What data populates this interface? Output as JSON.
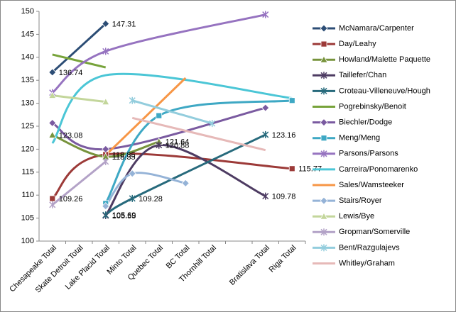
{
  "chart_data": {
    "type": "line",
    "categories": [
      "Chesapeake Total",
      "Skate Detroit Total",
      "Lake Placid Total",
      "Minto Total",
      "Quebec Total",
      "BC Total",
      "Thornhill Total",
      null,
      "Bratislava Total",
      "Riga Total"
    ],
    "ylim": [
      100,
      150
    ],
    "yticks": [
      100,
      105,
      110,
      115,
      120,
      125,
      130,
      135,
      140,
      145,
      150
    ],
    "legend": "right",
    "smooth": true,
    "series": [
      {
        "name": "McNamara/Carpenter",
        "color": "#2c4d75",
        "marker": "diamond",
        "data_labels": true,
        "values": [
          136.74,
          null,
          147.31,
          null,
          null,
          null,
          null,
          null,
          null,
          null
        ]
      },
      {
        "name": "Day/Leahy",
        "color": "#9c3a38",
        "marker": "square",
        "data_labels": true,
        "values": [
          109.26,
          null,
          118.85,
          null,
          null,
          null,
          null,
          null,
          null,
          115.77
        ]
      },
      {
        "name": "Howland/Malette Paquette",
        "color": "#77933c",
        "marker": "triangle",
        "data_labels": true,
        "values": [
          123.08,
          null,
          118.35,
          null,
          121.64,
          null,
          null,
          null,
          null,
          null
        ]
      },
      {
        "name": "Taillefer/Chan",
        "color": "#4d3b62",
        "marker": "x",
        "data_labels": true,
        "values": [
          null,
          null,
          105.55,
          null,
          120.88,
          null,
          null,
          null,
          109.78,
          null
        ]
      },
      {
        "name": "Croteau-Villeneuve/Hough",
        "color": "#276a7c",
        "marker": "x",
        "data_labels": true,
        "values": [
          null,
          null,
          105.69,
          109.28,
          null,
          null,
          null,
          null,
          123.16,
          null
        ]
      },
      {
        "name": "Pogrebinsky/Benoit",
        "color": "#77a33a",
        "marker": "none",
        "data_labels": false,
        "values": [
          140.6,
          null,
          137.8,
          null,
          null,
          null,
          null,
          null,
          null,
          null
        ]
      },
      {
        "name": "Biechler/Dodge",
        "color": "#7a5aa0",
        "marker": "diamond",
        "data_labels": false,
        "values": [
          125.7,
          null,
          120.0,
          null,
          null,
          null,
          null,
          null,
          129.0,
          null
        ]
      },
      {
        "name": "Meng/Meng",
        "color": "#3ea8c4",
        "marker": "square",
        "data_labels": false,
        "values": [
          null,
          null,
          108.2,
          null,
          127.3,
          null,
          null,
          null,
          null,
          130.6
        ]
      },
      {
        "name": "Parsons/Parsons",
        "color": "#9673c0",
        "marker": "x",
        "data_labels": false,
        "values": [
          132.3,
          null,
          141.3,
          null,
          null,
          null,
          null,
          null,
          149.3,
          null
        ]
      },
      {
        "name": "Carreira/Ponomarenko",
        "color": "#4bc6d6",
        "marker": "none",
        "data_labels": false,
        "values": [
          121.3,
          null,
          136.1,
          null,
          null,
          null,
          null,
          null,
          null,
          131.1
        ]
      },
      {
        "name": "Sales/Wamsteeker",
        "color": "#f79646",
        "marker": "none",
        "data_labels": false,
        "values": [
          null,
          null,
          118.7,
          null,
          null,
          135.5,
          null,
          null,
          null,
          null
        ]
      },
      {
        "name": "Stairs/Royer",
        "color": "#95b3d7",
        "marker": "diamond",
        "data_labels": false,
        "values": [
          null,
          null,
          107.6,
          114.7,
          null,
          112.6,
          null,
          null,
          null,
          null
        ]
      },
      {
        "name": "Lewis/Bye",
        "color": "#c3d69b",
        "marker": "triangle",
        "data_labels": false,
        "values": [
          131.7,
          null,
          130.3,
          null,
          null,
          null,
          null,
          null,
          null,
          null
        ]
      },
      {
        "name": "Gropman/Somerville",
        "color": "#b3a2c7",
        "marker": "x",
        "data_labels": false,
        "values": [
          107.9,
          null,
          117.3,
          null,
          null,
          null,
          null,
          null,
          null,
          null
        ]
      },
      {
        "name": "Bent/Razgulajevs",
        "color": "#93cddd",
        "marker": "x",
        "data_labels": false,
        "values": [
          null,
          null,
          null,
          130.6,
          null,
          null,
          125.6,
          null,
          null,
          null
        ]
      },
      {
        "name": "Whitley/Graham",
        "color": "#e6b9b8",
        "marker": "none",
        "data_labels": false,
        "values": [
          null,
          null,
          null,
          126.8,
          null,
          null,
          null,
          null,
          119.8,
          null
        ]
      }
    ]
  }
}
